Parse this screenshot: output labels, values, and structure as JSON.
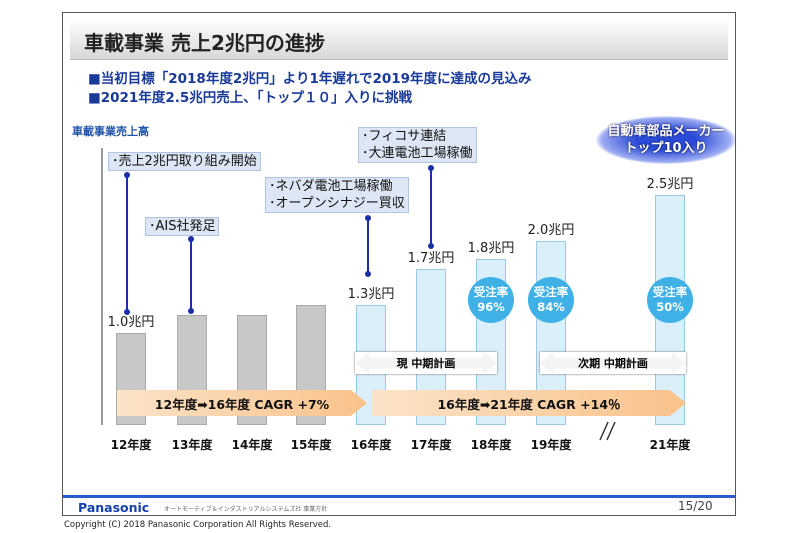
{
  "title": "車載事業 売上2兆円の進捗",
  "bullets": [
    "■当初目標「2018年度2兆円」より1年遅れで2019年度に達成の見込み",
    "■2021年度2.5兆円売上、「トップ１０」入りに挑戦"
  ],
  "badge": {
    "line1": "自動車部品メーカー",
    "line2": "トップ10入り"
  },
  "callouts": [
    {
      "lines": [
        "･売上2兆円取り組み開始"
      ]
    },
    {
      "lines": [
        "･AIS社発足"
      ]
    },
    {
      "lines": [
        "･ネバダ電池工場稼働",
        "･オープンシナジー買収"
      ]
    },
    {
      "lines": [
        "･フィコサ連結",
        "･大連電池工場稼働"
      ]
    }
  ],
  "order_rates": [
    {
      "label": "受注率",
      "value": "96%"
    },
    {
      "label": "受注率",
      "value": "84%"
    },
    {
      "label": "受注率",
      "value": "50%"
    }
  ],
  "plans": {
    "current": "現 中期計画",
    "next": "次期 中期計画"
  },
  "cagr": {
    "first": "12年度➡16年度 CAGR +7%",
    "second": "16年度➡21年度 CAGR +14％"
  },
  "chart_data": {
    "type": "bar",
    "ylabel": "車載事業売上高",
    "categories": [
      "12年度",
      "13年度",
      "14年度",
      "15年度",
      "16年度",
      "17年度",
      "18年度",
      "19年度",
      "21年度"
    ],
    "values": [
      1.0,
      1.2,
      1.2,
      1.3,
      1.3,
      1.7,
      1.8,
      2.0,
      2.5
    ],
    "labels": [
      "1.0兆円",
      null,
      null,
      null,
      "1.3兆円",
      "1.7兆円",
      "1.8兆円",
      "2.0兆円",
      "2.5兆円"
    ],
    "colors": {
      "actual": "#c8c8c8",
      "plan": "#dbeffa"
    },
    "axis_break": "between 19年度 and 21年度"
  },
  "footer": {
    "logo": "Panasonic",
    "subtitle": "オートモーティブ＆インダストリアルシステムズ社 事業方針",
    "page": "15/20"
  },
  "copyright": "Copyright (C) 2018 Panasonic Corporation All Rights Reserved."
}
